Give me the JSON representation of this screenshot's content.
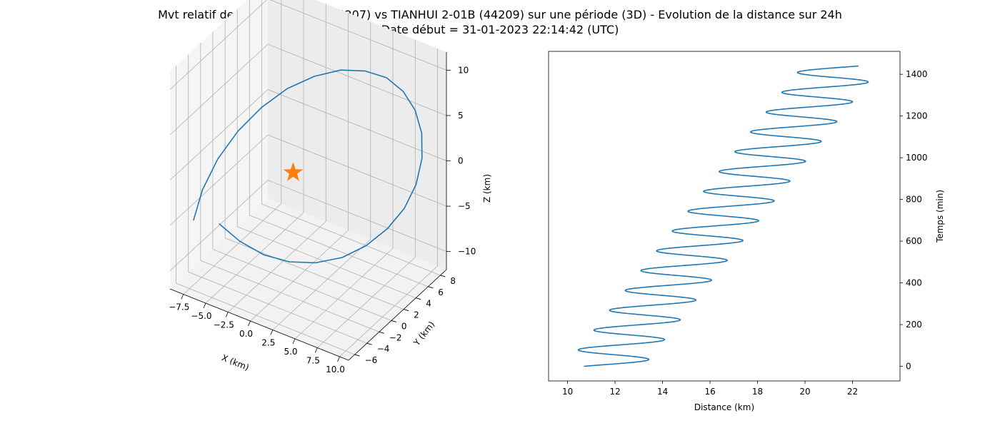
{
  "figure": {
    "title_line1": "Mvt relatif de TIANHUI 2-01A (44207) vs TIANHUI 2-01B (44209) sur une période (3D) - Evolution de la distance sur 24h",
    "title_line2": "Date début = 31-01-2023 22:14:42 (UTC)"
  },
  "chart_data": [
    {
      "type": "line-3d",
      "xlabel": "X (km)",
      "ylabel": "Y (km)",
      "zlabel": "Z (km)",
      "x_ticks": [
        "−7.5",
        "−5.0",
        "−2.5",
        "0.0",
        "2.5",
        "5.0",
        "7.5",
        "10.0"
      ],
      "y_ticks": [
        "−6",
        "−4",
        "−2",
        "0",
        "2",
        "4",
        "6",
        "8"
      ],
      "z_ticks": [
        "−10",
        "−5",
        "0",
        "5",
        "10"
      ],
      "xlim": [
        -9,
        11
      ],
      "ylim": [
        -7,
        9
      ],
      "zlim": [
        -12,
        12
      ],
      "series": [
        {
          "color": "#1f77b4",
          "x": [
            -7.2,
            -6.8,
            -5.9,
            -4.6,
            -3.0,
            -1.2,
            0.8,
            2.8,
            4.7,
            6.4,
            7.8,
            8.8,
            9.4,
            9.5,
            9.1,
            8.2,
            6.9,
            5.3,
            3.5,
            1.5,
            -0.5,
            -2.4,
            -4.2,
            -5.7
          ],
          "y": [
            -5.8,
            -4.9,
            -3.7,
            -2.3,
            -0.8,
            0.8,
            2.3,
            3.7,
            4.9,
            5.9,
            6.6,
            7.1,
            7.3,
            7.2,
            6.8,
            6.2,
            5.3,
            4.2,
            2.9,
            1.5,
            0.1,
            -1.3,
            -2.6,
            -3.8
          ],
          "z": [
            -4.5,
            -1.5,
            1.5,
            4.2,
            6.5,
            8.3,
            9.5,
            10.1,
            10.0,
            9.3,
            7.9,
            5.9,
            3.5,
            0.8,
            -2.0,
            -4.6,
            -6.8,
            -8.6,
            -9.8,
            -10.3,
            -10.1,
            -9.2,
            -7.6,
            -5.5
          ]
        }
      ],
      "marker": {
        "type": "star",
        "color": "#ff7f0e",
        "x": 0,
        "y": 0,
        "z": 0
      }
    },
    {
      "type": "line",
      "xlabel": "Distance (km)",
      "ylabel": "Temps (min)",
      "x_ticks": [
        "10",
        "12",
        "14",
        "16",
        "18",
        "20",
        "22"
      ],
      "y_ticks": [
        "0",
        "200",
        "400",
        "600",
        "800",
        "1000",
        "1200",
        "1400"
      ],
      "xlim": [
        9.2,
        24.0
      ],
      "ylim": [
        -70,
        1510
      ],
      "y_axis_side": "right",
      "series": [
        {
          "color": "#1f77b4",
          "t_start": 0,
          "t_end": 1440,
          "period_min": 95,
          "trend_start_km": 11.55,
          "trend_end_km": 21.55,
          "amplitude_km": 1.65,
          "phase_rad": -0.55
        }
      ]
    }
  ]
}
